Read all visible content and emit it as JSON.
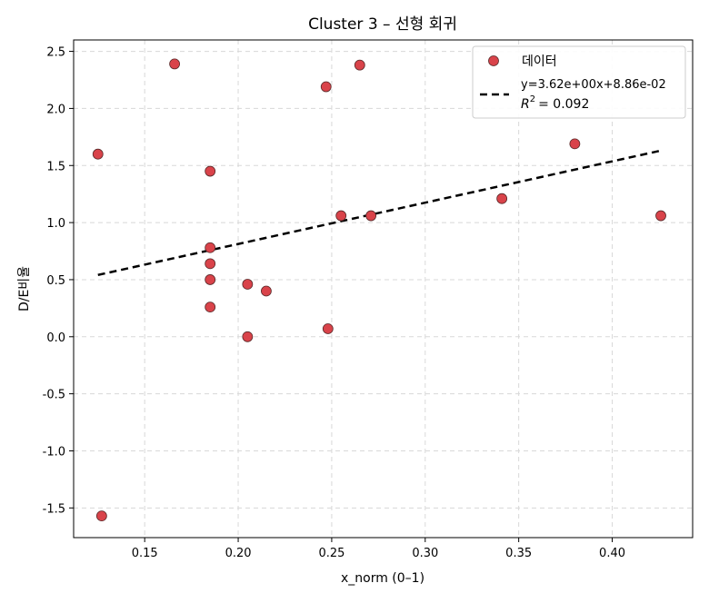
{
  "chart_data": {
    "type": "scatter",
    "title": "Cluster 3 – 선형 회귀",
    "xlabel": "x_norm (0–1)",
    "ylabel": "D/E비율",
    "xlim": [
      0.112,
      0.443
    ],
    "ylim": [
      -1.76,
      2.6
    ],
    "x_ticks": [
      0.15,
      0.2,
      0.25,
      0.3,
      0.35,
      0.4
    ],
    "x_tick_labels": [
      "0.15",
      "0.20",
      "0.25",
      "0.30",
      "0.35",
      "0.40"
    ],
    "y_ticks": [
      -1.5,
      -1.0,
      -0.5,
      0.0,
      0.5,
      1.0,
      1.5,
      2.0,
      2.5
    ],
    "y_tick_labels": [
      "-1.5",
      "-1.0",
      "-0.5",
      "0.0",
      "0.5",
      "1.0",
      "1.5",
      "2.0",
      "2.5"
    ],
    "grid": true,
    "legend_position": "top-right",
    "series": [
      {
        "name": "데이터",
        "kind": "scatter",
        "color": "#d9434a",
        "edge_color": "#5a2a2a",
        "points": [
          {
            "x": 0.125,
            "y": 1.6
          },
          {
            "x": 0.127,
            "y": -1.57
          },
          {
            "x": 0.166,
            "y": 2.39
          },
          {
            "x": 0.185,
            "y": 1.45
          },
          {
            "x": 0.185,
            "y": 0.78
          },
          {
            "x": 0.185,
            "y": 0.64
          },
          {
            "x": 0.185,
            "y": 0.5
          },
          {
            "x": 0.185,
            "y": 0.26
          },
          {
            "x": 0.205,
            "y": 0.46
          },
          {
            "x": 0.205,
            "y": 0.0
          },
          {
            "x": 0.215,
            "y": 0.4
          },
          {
            "x": 0.247,
            "y": 2.19
          },
          {
            "x": 0.248,
            "y": 0.07
          },
          {
            "x": 0.255,
            "y": 1.06
          },
          {
            "x": 0.265,
            "y": 2.38
          },
          {
            "x": 0.271,
            "y": 1.06
          },
          {
            "x": 0.341,
            "y": 1.21
          },
          {
            "x": 0.38,
            "y": 1.69
          },
          {
            "x": 0.426,
            "y": 1.06
          }
        ]
      },
      {
        "name": "y=3.62e+00x+8.86e-02",
        "kind": "line",
        "style": "dashed",
        "color": "#000000",
        "slope": 3.62,
        "intercept": 0.0886,
        "x_range": [
          0.125,
          0.426
        ]
      }
    ],
    "legend": {
      "entries": [
        "데이터",
        "y=3.62e+00x+8.86e-02"
      ],
      "r2_label": "R",
      "r2_sup": "2",
      "r2_value": "= 0.092"
    }
  }
}
